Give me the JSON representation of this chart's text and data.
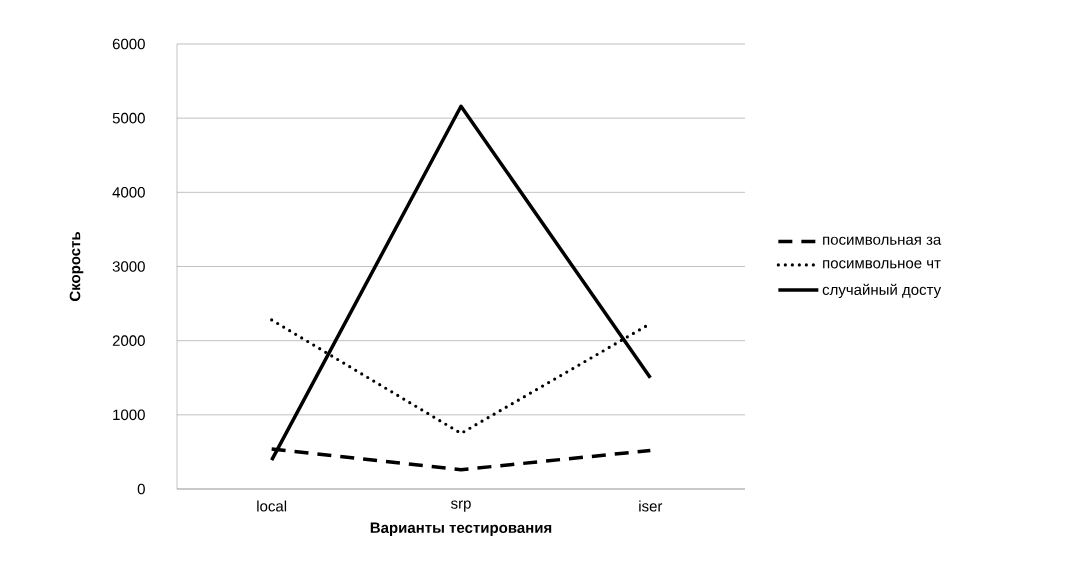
{
  "chart_data": {
    "type": "line",
    "xlabel": "Варианты тестирования",
    "ylabel": "Скорость",
    "categories": [
      "local",
      "srp",
      "iser"
    ],
    "series": [
      {
        "name": "посимвольная за",
        "color": "#000000",
        "line_style": "dashed",
        "values": [
          540,
          260,
          520
        ]
      },
      {
        "name": "посимвольное чт",
        "color": "#000000",
        "line_style": "dotted",
        "values": [
          2280,
          750,
          2230
        ]
      },
      {
        "name": "случайный досту",
        "color": "#000000",
        "line_style": "solid",
        "values": [
          390,
          5160,
          1500
        ]
      }
    ],
    "ylim": [
      0,
      6000
    ],
    "yticks": [
      0,
      1000,
      2000,
      3000,
      4000,
      5000,
      6000
    ],
    "grid": "y",
    "legend": "right"
  }
}
